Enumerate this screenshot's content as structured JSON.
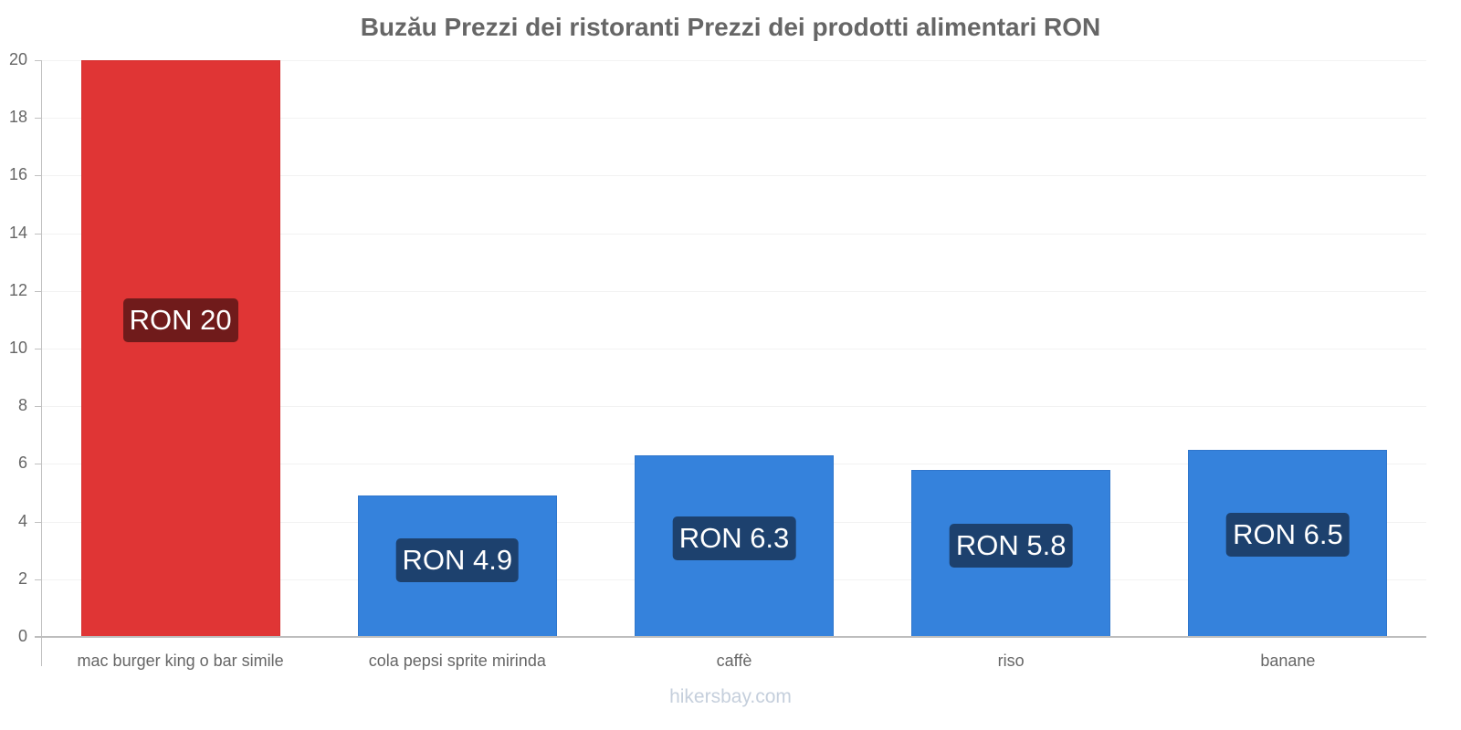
{
  "chart_data": {
    "type": "bar",
    "title": "Buzău Prezzi dei ristoranti Prezzi dei prodotti alimentari RON",
    "categories": [
      "mac burger king o bar simile",
      "cola pepsi sprite mirinda",
      "caffè",
      "riso",
      "banane"
    ],
    "values": [
      20,
      4.9,
      6.3,
      5.8,
      6.5
    ],
    "labels": [
      "RON 20",
      "RON 4.9",
      "RON 6.3",
      "RON 5.8",
      "RON 6.5"
    ],
    "colors": [
      "#e03535",
      "#3582dc",
      "#3582dc",
      "#3582dc",
      "#3582dc"
    ],
    "xlabel": "",
    "ylabel": "",
    "ylim": [
      0,
      20
    ],
    "yticks": [
      0,
      2,
      4,
      6,
      8,
      10,
      12,
      14,
      16,
      18,
      20
    ],
    "grid": true,
    "legend": "none"
  },
  "watermark": "hikersbay.com"
}
